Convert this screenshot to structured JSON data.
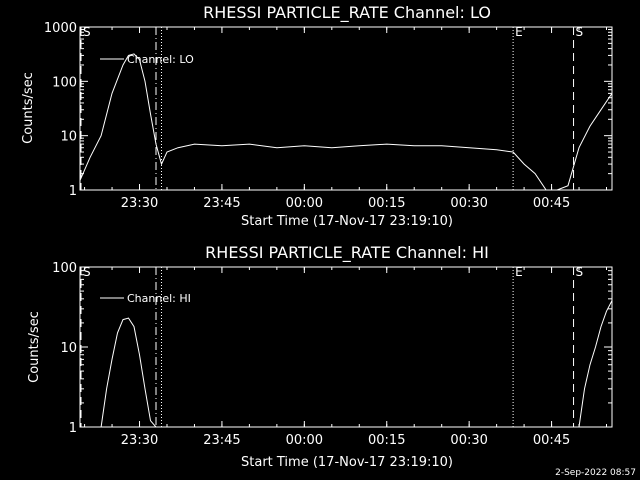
{
  "chart_data": [
    {
      "type": "line",
      "title": "RHESSI PARTICLE_RATE Channel: LO",
      "xlabel": "Start Time (17-Nov-17 23:19:10)",
      "ylabel": "Counts/sec",
      "yscale": "log",
      "ylim": [
        1,
        1000
      ],
      "xlim": [
        "23:19:10",
        "00:56:00"
      ],
      "xticks": [
        "23:30",
        "23:45",
        "00:00",
        "00:15",
        "00:30",
        "00:45"
      ],
      "yticks": [
        "1",
        "10",
        "100",
        "1000"
      ],
      "legend": "top-left",
      "series": [
        {
          "name": "Channel: LO",
          "x": [
            "23:19:10",
            "23:21",
            "23:23",
            "23:25",
            "23:27",
            "23:28",
            "23:29",
            "23:30",
            "23:31",
            "23:32",
            "23:33",
            "23:34",
            "23:35",
            "23:37",
            "23:40",
            "23:45",
            "23:50",
            "23:55",
            "24:00",
            "24:05",
            "24:10",
            "24:15",
            "24:20",
            "24:25",
            "24:30",
            "24:35",
            "24:38",
            "24:40",
            "24:42",
            "24:44",
            "24:46",
            "24:48",
            "24:50",
            "24:52",
            "24:54",
            "24:56"
          ],
          "values": [
            1.5,
            4,
            10,
            60,
            200,
            300,
            320,
            250,
            100,
            25,
            7,
            3,
            5,
            6,
            7,
            6.5,
            7,
            6,
            6.5,
            6,
            6.5,
            7,
            6.5,
            6.5,
            6,
            5.5,
            5,
            3,
            2,
            1,
            1,
            1.2,
            6,
            15,
            30,
            60
          ]
        }
      ],
      "markers": [
        {
          "label": "S",
          "x": "23:19:10",
          "style": "dashed"
        },
        {
          "label": "",
          "x": "23:33",
          "style": "dash-dot"
        },
        {
          "label": "",
          "x": "23:34",
          "style": "dotted"
        },
        {
          "label": "E",
          "x": "24:38",
          "style": "dotted"
        },
        {
          "label": "S",
          "x": "24:49",
          "style": "dashed"
        },
        {
          "label": "",
          "x": "24:56",
          "style": "dash-dot"
        }
      ]
    },
    {
      "type": "line",
      "title": "RHESSI PARTICLE_RATE Channel: HI",
      "xlabel": "Start Time (17-Nov-17 23:19:10)",
      "ylabel": "Counts/sec",
      "yscale": "log",
      "ylim": [
        1,
        100
      ],
      "xlim": [
        "23:19:10",
        "00:56:00"
      ],
      "xticks": [
        "23:30",
        "23:45",
        "00:00",
        "00:15",
        "00:30",
        "00:45"
      ],
      "yticks": [
        "1",
        "10",
        "100"
      ],
      "legend": "top-left",
      "series": [
        {
          "name": "Channel: HI",
          "x": [
            "23:23",
            "23:24",
            "23:25",
            "23:26",
            "23:27",
            "23:28",
            "23:29",
            "23:30",
            "23:31",
            "23:32",
            "23:33",
            "24:50",
            "24:51",
            "24:52",
            "24:53",
            "24:54",
            "24:55",
            "24:56"
          ],
          "values": [
            1,
            3,
            7,
            15,
            22,
            23,
            18,
            8,
            3,
            1.2,
            1,
            1,
            3,
            6,
            10,
            18,
            28,
            38
          ]
        }
      ],
      "markers": [
        {
          "label": "S",
          "x": "23:19:10",
          "style": "dashed"
        },
        {
          "label": "",
          "x": "23:33",
          "style": "dash-dot"
        },
        {
          "label": "",
          "x": "23:34",
          "style": "dotted"
        },
        {
          "label": "E",
          "x": "24:38",
          "style": "dotted"
        },
        {
          "label": "S",
          "x": "24:49",
          "style": "dashed"
        },
        {
          "label": "",
          "x": "24:56",
          "style": "dash-dot"
        }
      ]
    }
  ],
  "timestamp": "2-Sep-2022 08:57",
  "colors": {
    "background": "#000000",
    "foreground": "#ffffff"
  }
}
